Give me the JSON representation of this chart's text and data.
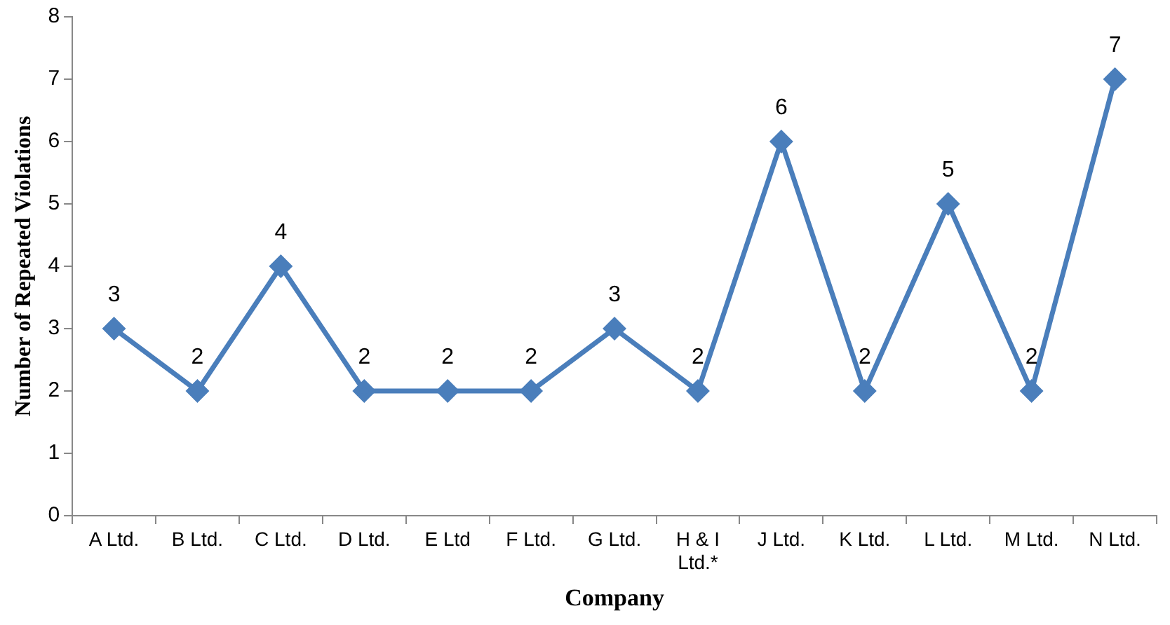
{
  "chart_data": {
    "type": "line",
    "xlabel": "Company",
    "ylabel": "Number of Repeated Violations",
    "categories": [
      "A Ltd.",
      "B Ltd.",
      "C Ltd.",
      "D Ltd.",
      "E Ltd",
      "F Ltd.",
      "G Ltd.",
      "H & I Ltd.*",
      "J Ltd.",
      "K Ltd.",
      "L Ltd.",
      "M Ltd.",
      "N Ltd."
    ],
    "series": [
      {
        "color": "#4a7ebb",
        "values": [
          3,
          2,
          4,
          2,
          2,
          2,
          3,
          2,
          6,
          2,
          5,
          2,
          7
        ]
      }
    ],
    "ylim": [
      0,
      8
    ],
    "yticks": [
      0,
      1,
      2,
      3,
      4,
      5,
      6,
      7,
      8
    ],
    "grid": false,
    "legend": false,
    "marker": "diamond",
    "line_style": "solid",
    "data_labels": true
  }
}
